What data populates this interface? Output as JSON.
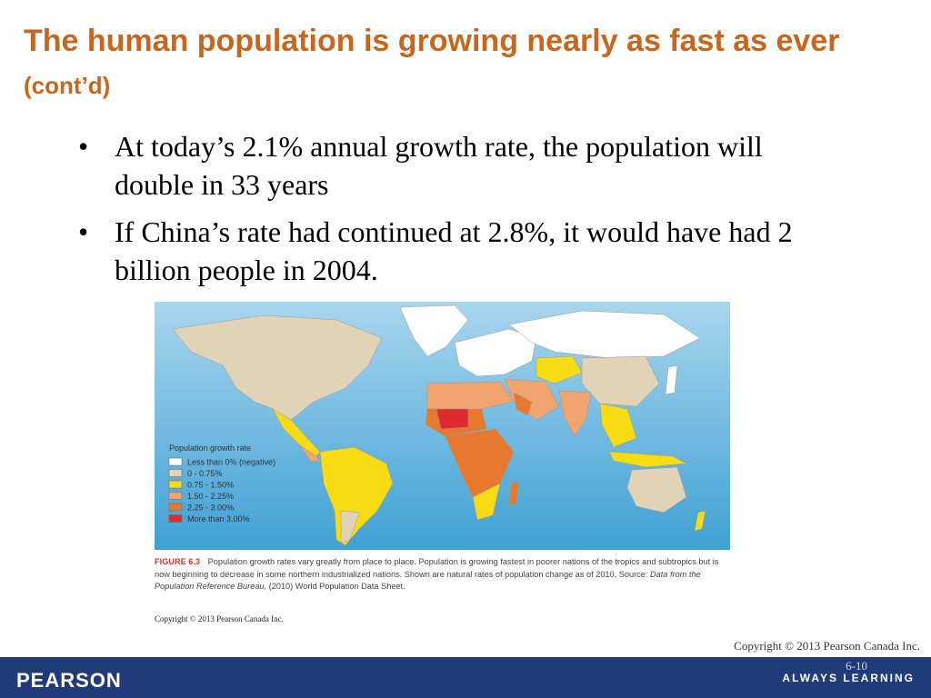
{
  "title": {
    "main": "The human population is growing nearly as fast as ever",
    "suffix": "(cont’d)"
  },
  "bullets": [
    "At today’s 2.1% annual growth rate, the population will double in 33 years",
    "If China’s rate had continued at 2.8%, it would have had 2 billion people in 2004."
  ],
  "bullet_glyph": "•",
  "map": {
    "legend_title": "Population growth rate",
    "legend": [
      {
        "label": "Less than 0% (negative)",
        "color": "#FFFFFF"
      },
      {
        "label": "0 - 0.75%",
        "color": "#E0D3B8"
      },
      {
        "label": "0.75 - 1.50%",
        "color": "#F7DC14"
      },
      {
        "label": "1.50 - 2.25%",
        "color": "#F2A46E"
      },
      {
        "label": "2.25 - 3.00%",
        "color": "#E8782E"
      },
      {
        "label": "More than 3.00%",
        "color": "#E12A2E"
      }
    ],
    "ocean_color": "#5AAFD8"
  },
  "caption": {
    "label": "FIGURE 6.3",
    "text": "Population growth rates vary greatly from place to place. Population is growing fastest in poorer nations of the tropics and subtropics but is now beginning to decrease in some northern industrialized nations. Shown are natural rates of population change as of 2010.",
    "source_prefix": "Source:",
    "source_italic_1": "Data from the Population Reference Bureau,",
    "source_rest": "(2010) World Population Data Sheet."
  },
  "image_copyright": "Copyright © 2013 Pearson Canada Inc.",
  "slide_copyright": "Copyright © 2013 Pearson Canada Inc.",
  "footer": {
    "brand": "PEARSON",
    "tagline": "ALWAYS LEARNING",
    "page": "6-10"
  }
}
